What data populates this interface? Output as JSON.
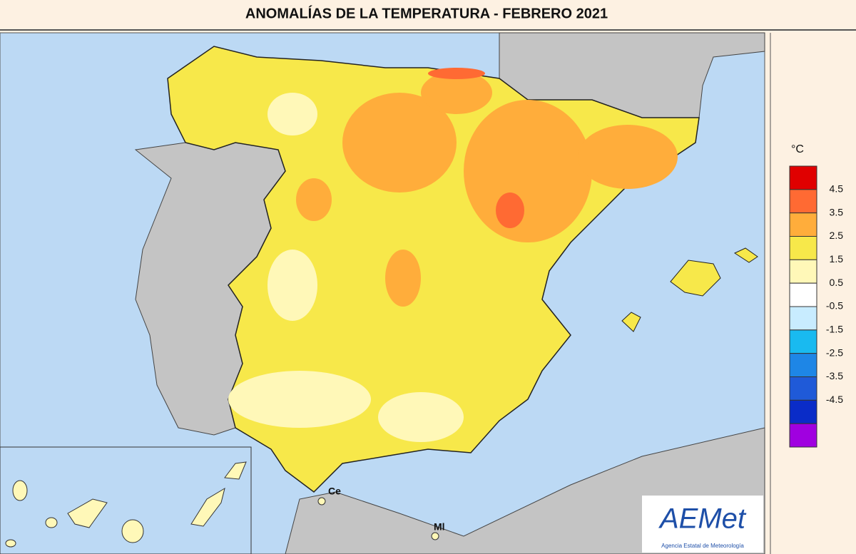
{
  "title": "ANOMALÍAS DE LA TEMPERATURA - FEBRERO 2021",
  "legend": {
    "unit": "°C",
    "colors": [
      "#e00000",
      "#ff6a33",
      "#ffad3b",
      "#f7e84a",
      "#fff8b8",
      "#ffffff",
      "#c8ecff",
      "#19baf0",
      "#1e86e6",
      "#1f5ad8",
      "#0a2cc8",
      "#a000e0"
    ],
    "ticks": [
      4.5,
      3.5,
      2.5,
      1.5,
      0.5,
      -0.5,
      -1.5,
      -2.5,
      -3.5,
      -4.5
    ]
  },
  "places": [
    "Ce",
    "Ml"
  ],
  "logo": {
    "name": "AEMet",
    "caption": "Agencia Estatal de Meteorología"
  }
}
